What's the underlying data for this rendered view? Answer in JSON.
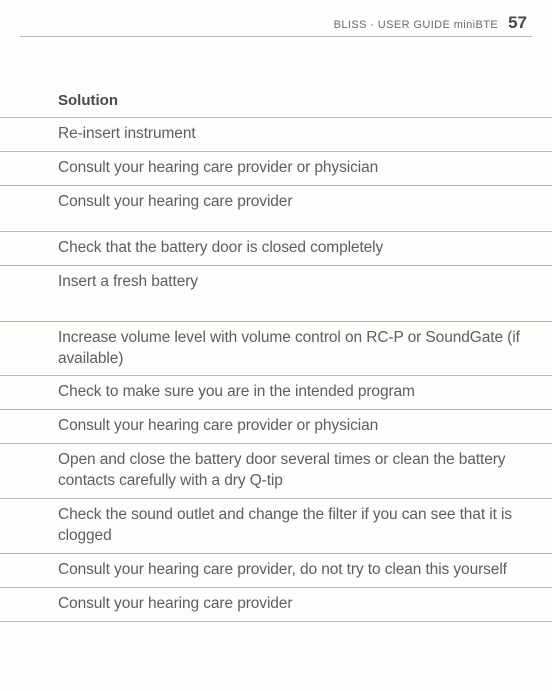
{
  "header": {
    "label": "BLISS · USER GUIDE miniBTE",
    "page": "57"
  },
  "section": {
    "title": "Solution"
  },
  "rows": [
    {
      "text": "Re-insert instrument"
    },
    {
      "text": "Consult your hearing care provider or physician"
    },
    {
      "text": "Consult your hearing care provider"
    },
    {
      "text": "Check that the battery door is closed completely"
    },
    {
      "text": "Insert a fresh battery"
    },
    {
      "text": "Increase volume level with volume control on RC-P or SoundGate (if available)"
    },
    {
      "text": "Check to make sure you are in the intended program"
    },
    {
      "text": "Consult your hearing care provider or physician"
    },
    {
      "text": "Open and close the battery door several times or clean the battery contacts carefully with a dry Q-tip"
    },
    {
      "text": "Check the sound outlet and change the filter if you can see that it is clogged"
    },
    {
      "text": "Consult your hearing care provider, do not try to clean this yourself"
    },
    {
      "text": "Consult your hearing care provider"
    }
  ],
  "colors": {
    "background": "#fdfdfc",
    "text": "#5e5e5c",
    "heading": "#4a4a4a",
    "rule": "#b8b8b5"
  },
  "typography": {
    "body_fontsize": 15.5,
    "header_fontsize": 11,
    "pagenum_fontsize": 17,
    "section_title_fontsize": 15
  }
}
